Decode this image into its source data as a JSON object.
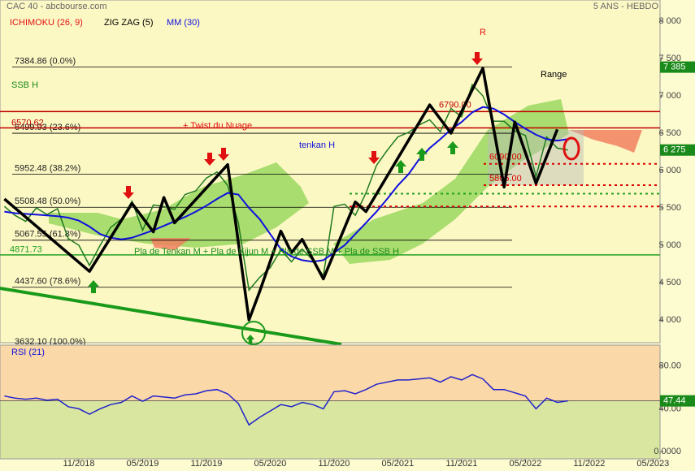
{
  "chart_data": [
    {
      "type": "line",
      "title": "CAC 40 - abcbourse.com",
      "subtitle": "5 ANS - HEBDO",
      "indicator": "ICHIMOKU (26, 9)",
      "x": [
        "04/2018",
        "05/2018",
        "06/2018",
        "07/2018",
        "08/2018",
        "09/2018",
        "10/2018",
        "11/2018",
        "12/2018",
        "01/2019",
        "02/2019",
        "03/2019",
        "04/2019",
        "05/2019",
        "06/2019",
        "07/2019",
        "08/2019",
        "09/2019",
        "10/2019",
        "11/2019",
        "12/2019",
        "01/2020",
        "02/2020",
        "03/2020",
        "04/2020",
        "05/2020",
        "06/2020",
        "07/2020",
        "08/2020",
        "09/2020",
        "10/2020",
        "11/2020",
        "12/2020",
        "01/2021",
        "02/2021",
        "03/2021",
        "04/2021",
        "05/2021",
        "06/2021",
        "07/2021",
        "08/2021",
        "09/2021",
        "10/2021",
        "11/2021",
        "12/2021",
        "01/2022",
        "02/2022",
        "03/2022",
        "04/2022",
        "05/2022",
        "06/2022",
        "07/2022",
        "08/2022",
        "09/2022"
      ],
      "series": [
        {
          "color": "#1f7a1f",
          "values": [
            5520,
            5400,
            5320,
            5500,
            5410,
            5490,
            5090,
            5000,
            4730,
            5000,
            5240,
            5350,
            5590,
            5200,
            5540,
            5520,
            5480,
            5680,
            5730,
            5900,
            5980,
            5800,
            5300,
            4400,
            4570,
            4700,
            4940,
            4780,
            4950,
            4800,
            4590,
            5520,
            5550,
            5400,
            5700,
            6070,
            6270,
            6450,
            6510,
            6610,
            6680,
            6520,
            6830,
            6720,
            7150,
            7000,
            6660,
            6660,
            6530,
            6470,
            5920,
            6450,
            6300,
            6275
          ]
        },
        {
          "name": "ZIG ZAG (5)",
          "color": "#000000",
          "x": [
            "04/2018",
            "12/2018",
            "04/2019",
            "06/2019",
            "07/2019",
            "08/2019",
            "01/2020",
            "03/2020",
            "04/2020",
            "06/2020",
            "07/2020",
            "08/2020",
            "10/2020",
            "01/2021",
            "02/2021",
            "08/2021",
            "10/2021",
            "01/2022",
            "03/2022",
            "04/2022",
            "06/2022",
            "08/2022"
          ],
          "values": [
            5620,
            4650,
            5560,
            5180,
            5640,
            5300,
            6080,
            4000,
            4380,
            5190,
            4900,
            5080,
            4550,
            5580,
            5450,
            6880,
            6500,
            7370,
            5780,
            6650,
            5830,
            6550
          ]
        },
        {
          "name": "MM (30)",
          "color": "#1010dd",
          "values": [
            5450,
            5430,
            5420,
            5410,
            5400,
            5390,
            5370,
            5330,
            5250,
            5150,
            5100,
            5080,
            5100,
            5150,
            5200,
            5260,
            5320,
            5380,
            5450,
            5530,
            5620,
            5700,
            5680,
            5500,
            5350,
            5150,
            4950,
            4850,
            4800,
            4780,
            4800,
            4900,
            5000,
            5150,
            5300,
            5450,
            5620,
            5800,
            5950,
            6150,
            6300,
            6420,
            6550,
            6650,
            6780,
            6850,
            6830,
            6750,
            6650,
            6560,
            6480,
            6420,
            6400,
            6420
          ]
        }
      ],
      "levels": [
        {
          "value": 7384.86,
          "label": "7384.86 (0.0%)",
          "color": "#000000"
        },
        {
          "value": 6499.93,
          "label": "6499.93 (23.6%)",
          "color": "#000000"
        },
        {
          "value": 5952.48,
          "label": "5952.48 (38.2%)",
          "color": "#000000"
        },
        {
          "value": 5508.48,
          "label": "5508.48 (50.0%)",
          "color": "#000000"
        },
        {
          "value": 5067.55,
          "label": "5067.55 (61.8%)",
          "color": "#000000"
        },
        {
          "value": 4437.6,
          "label": "4437.60 (78.6%)",
          "color": "#000000"
        },
        {
          "value": 3632.1,
          "label": "3632.10 (100.0%)",
          "color": "#000000"
        }
      ],
      "lines": [
        {
          "value": 6790.0,
          "label": "6790.00",
          "color": "#c00000"
        },
        {
          "value": 6570.62,
          "label": "6570.62",
          "color": "#c00000"
        },
        {
          "value": 6090.0,
          "label": "6090.00",
          "color": "#dd0000",
          "dashed": true
        },
        {
          "value": 5805.0,
          "label": "5805.00",
          "color": "#dd0000",
          "dashed": true
        },
        {
          "value": 5690,
          "color": "#22a022",
          "dashed": true
        },
        {
          "value": 5520,
          "color": "#dd0000",
          "dashed": true
        },
        {
          "value": 4871.73,
          "label": "4871.73",
          "color": "#22a022"
        }
      ],
      "annotations": [
        "R",
        "Range",
        "+ Twist du Nuage",
        "tenkan H",
        "SSB H",
        "Pla de Tenkan M + Pla de Kijun M + Pla de SSB M + Pla de SSB H"
      ],
      "ssb_h": {
        "value": 7385,
        "label": "7 385"
      },
      "last_price": {
        "value": 6275,
        "label": "6 275"
      },
      "ylim": [
        3696,
        8283
      ],
      "yticks": [
        {
          "value": 8000,
          "label": "8 000"
        },
        {
          "value": 7500,
          "label": "7 500"
        },
        {
          "value": 7000,
          "label": "7 000"
        },
        {
          "value": 6500,
          "label": "6 500"
        },
        {
          "value": 6000,
          "label": "6 000"
        },
        {
          "value": 5500,
          "label": "5 500"
        },
        {
          "value": 5000,
          "label": "5 000"
        },
        {
          "value": 4500,
          "label": "4 500"
        },
        {
          "value": 4000,
          "label": "4 000"
        }
      ],
      "xticks": [
        "11/2018",
        "05/2019",
        "11/2019",
        "05/2020",
        "11/2020",
        "05/2021",
        "11/2021",
        "05/2022",
        "11/2022",
        "05/2023"
      ]
    },
    {
      "type": "line",
      "title": "RSI (21)",
      "x": [
        "04/2018",
        "05/2018",
        "06/2018",
        "07/2018",
        "08/2018",
        "09/2018",
        "10/2018",
        "11/2018",
        "12/2018",
        "01/2019",
        "02/2019",
        "03/2019",
        "04/2019",
        "05/2019",
        "06/2019",
        "07/2019",
        "08/2019",
        "09/2019",
        "10/2019",
        "11/2019",
        "12/2019",
        "01/2020",
        "02/2020",
        "03/2020",
        "04/2020",
        "05/2020",
        "06/2020",
        "07/2020",
        "08/2020",
        "09/2020",
        "10/2020",
        "11/2020",
        "12/2020",
        "01/2021",
        "02/2021",
        "03/2021",
        "04/2021",
        "05/2021",
        "06/2021",
        "07/2021",
        "08/2021",
        "09/2021",
        "10/2021",
        "11/2021",
        "12/2021",
        "01/2022",
        "02/2022",
        "03/2022",
        "04/2022",
        "05/2022",
        "06/2022",
        "07/2022",
        "08/2022",
        "09/2022"
      ],
      "series": [
        {
          "color": "#2222cc",
          "values": [
            52,
            50,
            49,
            50,
            48,
            49,
            42,
            40,
            35,
            40,
            44,
            46,
            52,
            47,
            52,
            51,
            50,
            53,
            54,
            57,
            58,
            54,
            45,
            25,
            32,
            38,
            44,
            42,
            46,
            44,
            40,
            56,
            57,
            54,
            58,
            63,
            65,
            67,
            67,
            68,
            69,
            65,
            70,
            67,
            72,
            68,
            58,
            58,
            55,
            52,
            40,
            50,
            46,
            47.44
          ]
        }
      ],
      "ylim": [
        -6.8,
        99.6
      ],
      "yticks": [
        {
          "value": 80,
          "label": "80.00"
        },
        {
          "value": 40,
          "label": "40.00"
        },
        {
          "value": 0,
          "label": "0.0000"
        }
      ]
    }
  ]
}
